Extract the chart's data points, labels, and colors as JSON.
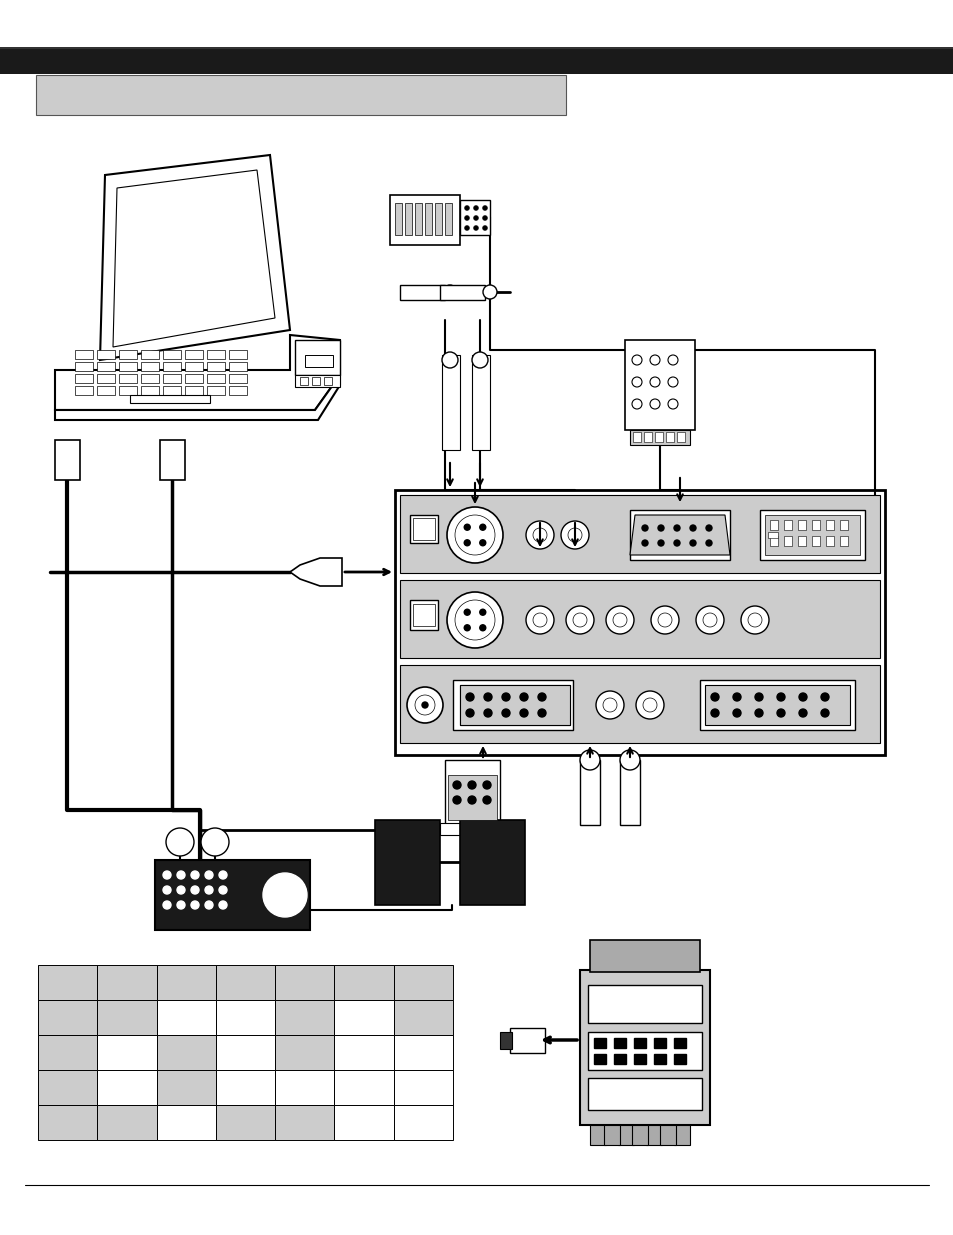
{
  "bg_color": "#ffffff",
  "header_bar_color": "#1a1a1a",
  "gray_light": "#cccccc",
  "gray_med": "#aaaaaa",
  "gray_dark": "#888888",
  "table_cell_colors": [
    [
      "g",
      "g",
      "g",
      "g",
      "g",
      "g",
      "g"
    ],
    [
      "g",
      "g",
      "w",
      "w",
      "g",
      "w",
      "g"
    ],
    [
      "g",
      "w",
      "g",
      "w",
      "g",
      "w",
      "w"
    ],
    [
      "g",
      "w",
      "g",
      "w",
      "w",
      "w",
      "w"
    ],
    [
      "g",
      "g",
      "w",
      "g",
      "g",
      "w",
      "w"
    ]
  ]
}
